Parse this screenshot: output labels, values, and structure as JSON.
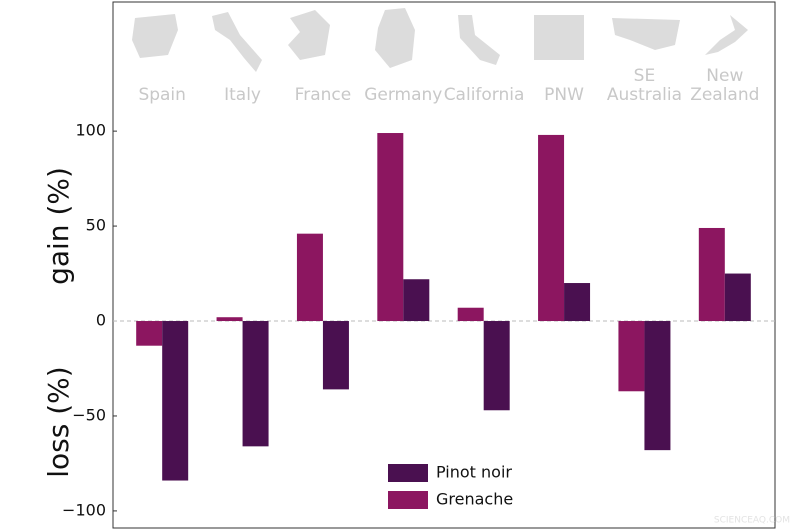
{
  "chart_data": {
    "type": "bar",
    "categories": [
      "Spain",
      "Italy",
      "France",
      "Germany",
      "California",
      "PNW",
      "SE Australia",
      "New Zealand"
    ],
    "series": [
      {
        "name": "Grenache",
        "color": "#8c1660",
        "values": [
          -13,
          2,
          46,
          99,
          7,
          98,
          -37,
          49
        ]
      },
      {
        "name": "Pinot noir",
        "color": "#4a1050",
        "values": [
          -84,
          -66,
          -36,
          22,
          -47,
          20,
          -68,
          25
        ]
      }
    ],
    "ylim": [
      -109,
      168
    ],
    "yticks": [
      {
        "value": -100,
        "label": "−100"
      },
      {
        "value": -50,
        "label": "−50"
      },
      0,
      50,
      100
    ],
    "gain_label": "gain (%)",
    "loss_label": "loss (%)",
    "watermark": "SCIENCEAQ.COM"
  }
}
